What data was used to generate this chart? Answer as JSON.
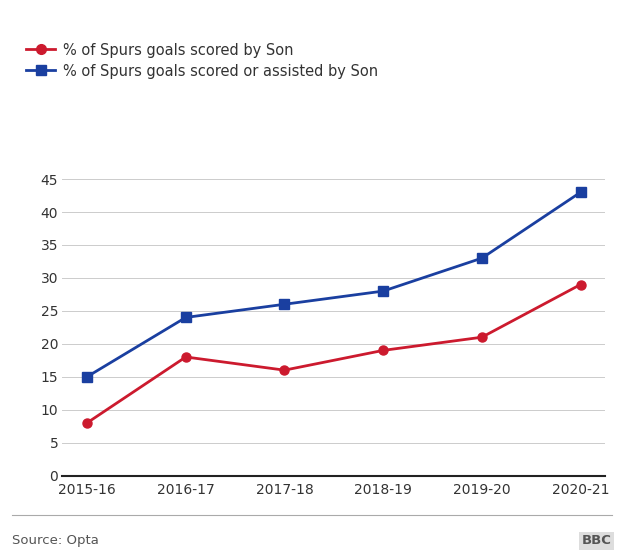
{
  "seasons": [
    "2015-16",
    "2016-17",
    "2017-18",
    "2018-19",
    "2019-20",
    "2020-21"
  ],
  "scored_by_son": [
    8,
    18,
    16,
    19,
    21,
    29
  ],
  "scored_or_assisted_by_son": [
    15,
    24,
    26,
    28,
    33,
    43
  ],
  "line1_color": "#cc1a2e",
  "line2_color": "#1a3fa0",
  "line1_label": "% of Spurs goals scored by Son",
  "line2_label": "% of Spurs goals scored or assisted by Son",
  "ylim": [
    0,
    47
  ],
  "yticks": [
    0,
    5,
    10,
    15,
    20,
    25,
    30,
    35,
    40,
    45
  ],
  "source_text": "Source: Opta",
  "bbc_text": "BBC",
  "background_color": "#ffffff",
  "title_fontsize": 15,
  "legend_fontsize": 10.5,
  "tick_fontsize": 10,
  "source_fontsize": 9.5
}
